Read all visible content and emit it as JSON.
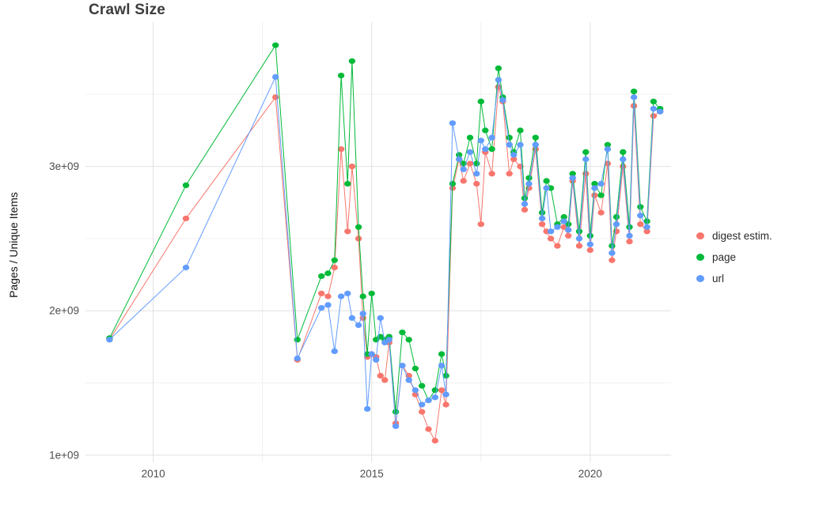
{
  "title": "Crawl Size",
  "chart_data": {
    "type": "line",
    "title": "Crawl Size",
    "xlabel": "",
    "ylabel": "Pages / Unique Items",
    "y_units": "pages (values are billions, i.e. value * 1e9)",
    "xlim": [
      2008.45,
      2021.85
    ],
    "ylim": [
      0.95,
      4.0
    ],
    "grid": true,
    "legend_position": "right",
    "x_major_gridlines": [
      2010,
      2015,
      2020
    ],
    "x_minor_gridlines": [
      2012.5,
      2017.5
    ],
    "y_major_gridlines": [
      1,
      2,
      3
    ],
    "y_minor_gridlines": [
      1.5,
      2.5,
      3.5
    ],
    "x_tick_labels": [
      "2010",
      "2015",
      "2020"
    ],
    "y_tick_labels": [
      "1e+09",
      "2e+09",
      "3e+09"
    ],
    "x": [
      2009.0,
      2010.75,
      2012.8,
      2013.3,
      2013.85,
      2014.0,
      2014.15,
      2014.3,
      2014.45,
      2014.55,
      2014.7,
      2014.8,
      2014.9,
      2015.0,
      2015.1,
      2015.2,
      2015.3,
      2015.4,
      2015.55,
      2015.7,
      2015.85,
      2016.0,
      2016.15,
      2016.3,
      2016.45,
      2016.6,
      2016.7,
      2016.85,
      2017.0,
      2017.1,
      2017.25,
      2017.4,
      2017.5,
      2017.6,
      2017.75,
      2017.9,
      2018.0,
      2018.15,
      2018.25,
      2018.4,
      2018.5,
      2018.6,
      2018.75,
      2018.9,
      2019.0,
      2019.1,
      2019.25,
      2019.4,
      2019.5,
      2019.6,
      2019.75,
      2019.9,
      2020.0,
      2020.1,
      2020.25,
      2020.4,
      2020.5,
      2020.6,
      2020.75,
      2020.9,
      2021.0,
      2021.15,
      2021.3,
      2021.45,
      2021.6
    ],
    "series": [
      {
        "name": "digest estim.",
        "color": "#F8766D",
        "values": [
          1.8,
          2.64,
          3.48,
          1.66,
          2.12,
          2.1,
          2.3,
          3.12,
          2.55,
          3.0,
          2.5,
          1.95,
          1.68,
          1.7,
          1.68,
          1.55,
          1.52,
          1.78,
          1.22,
          1.62,
          1.55,
          1.42,
          1.3,
          1.18,
          1.1,
          1.45,
          1.35,
          2.85,
          3.05,
          2.9,
          3.02,
          2.88,
          2.6,
          3.1,
          2.95,
          3.55,
          3.45,
          2.95,
          3.05,
          3.0,
          2.7,
          2.85,
          3.12,
          2.6,
          2.55,
          2.5,
          2.45,
          2.58,
          2.52,
          2.9,
          2.45,
          2.95,
          2.42,
          2.8,
          2.68,
          3.02,
          2.35,
          2.55,
          3.0,
          2.48,
          3.42,
          2.6,
          2.55,
          3.35,
          3.38
        ]
      },
      {
        "name": "page",
        "color": "#00BA38",
        "values": [
          1.81,
          2.87,
          3.84,
          1.8,
          2.24,
          2.26,
          2.35,
          3.63,
          2.88,
          3.73,
          2.58,
          2.1,
          1.7,
          2.12,
          1.8,
          1.82,
          1.8,
          1.82,
          1.3,
          1.85,
          1.8,
          1.6,
          1.48,
          1.38,
          1.45,
          1.7,
          1.55,
          2.88,
          3.08,
          3.02,
          3.2,
          3.02,
          3.45,
          3.25,
          3.12,
          3.68,
          3.48,
          3.2,
          3.1,
          3.25,
          2.78,
          2.92,
          3.2,
          2.68,
          2.9,
          2.85,
          2.6,
          2.65,
          2.6,
          2.95,
          2.55,
          3.1,
          2.52,
          2.88,
          2.8,
          3.15,
          2.45,
          2.65,
          3.1,
          2.58,
          3.52,
          2.72,
          2.62,
          3.45,
          3.4
        ]
      },
      {
        "name": "url",
        "color": "#619CFF",
        "values": [
          1.8,
          2.3,
          3.62,
          1.67,
          2.02,
          2.04,
          1.72,
          2.1,
          2.12,
          1.95,
          1.9,
          1.98,
          1.32,
          1.7,
          1.66,
          1.95,
          1.78,
          1.8,
          1.2,
          1.62,
          1.52,
          1.45,
          1.35,
          1.38,
          1.4,
          1.62,
          1.42,
          3.3,
          3.05,
          2.98,
          3.1,
          2.95,
          3.18,
          3.12,
          3.2,
          3.6,
          3.46,
          3.15,
          3.08,
          3.15,
          2.74,
          2.88,
          3.15,
          2.64,
          2.85,
          2.55,
          2.58,
          2.62,
          2.56,
          2.92,
          2.5,
          3.05,
          2.46,
          2.85,
          2.88,
          3.12,
          2.4,
          2.6,
          3.05,
          2.52,
          3.48,
          2.66,
          2.58,
          3.4,
          3.38
        ]
      }
    ]
  }
}
